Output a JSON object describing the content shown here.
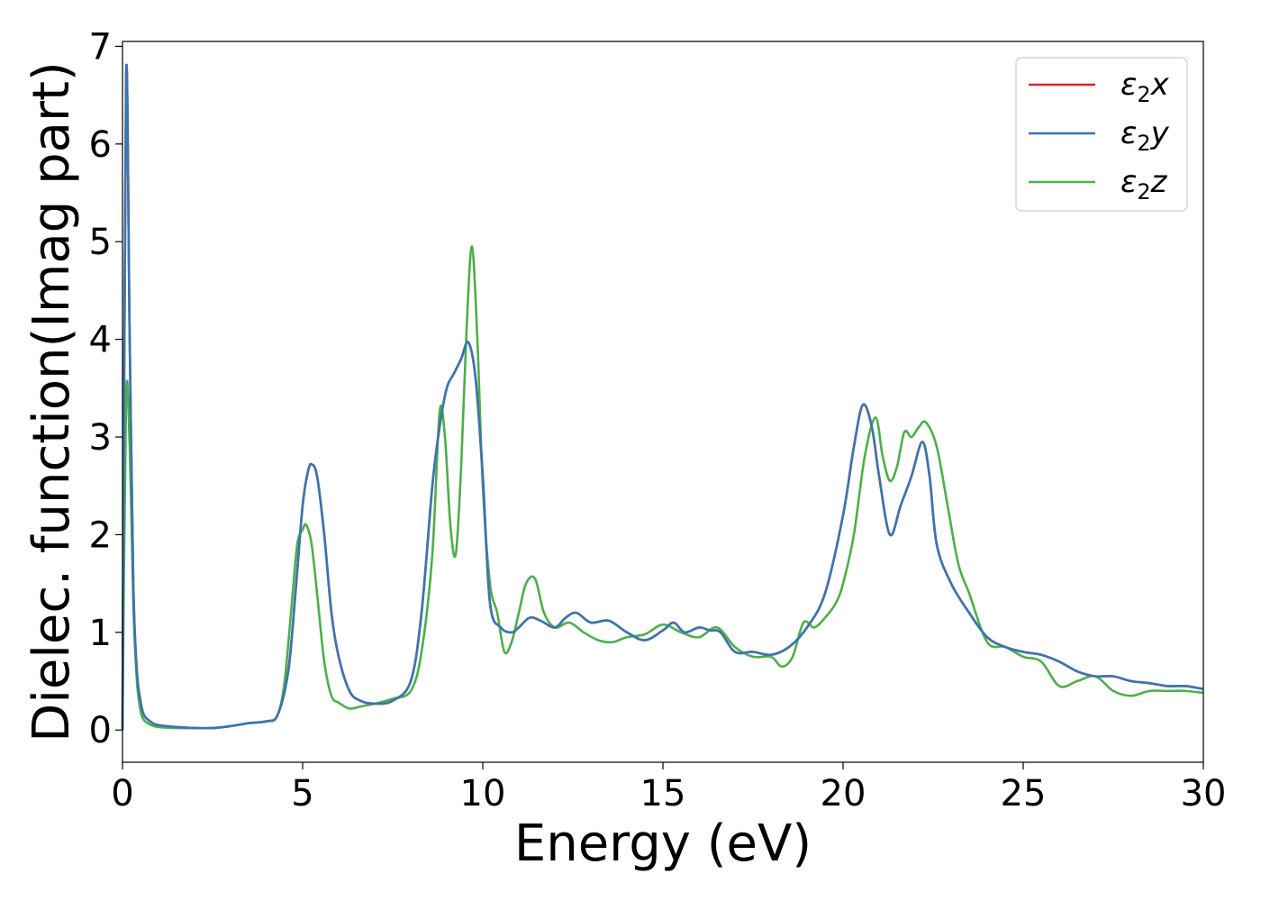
{
  "chart_data": {
    "type": "line",
    "title": "",
    "xlabel": "Energy (eV)",
    "ylabel": "Dielec. function(Imag part)",
    "xlim": [
      0,
      30
    ],
    "ylim": [
      -0.33,
      7.05
    ],
    "xticks": [
      0,
      5,
      10,
      15,
      20,
      25,
      30
    ],
    "yticks": [
      0,
      1,
      2,
      3,
      4,
      5,
      6,
      7
    ],
    "grid": false,
    "legend_position": "top-right",
    "series": [
      {
        "name": "ε₂x",
        "legend": {
          "base": "ε",
          "sub": "2",
          "suffix": "x"
        },
        "color": "#d62728",
        "x": [
          0,
          0.1,
          0.2,
          0.3,
          0.4,
          0.5,
          0.6,
          0.8,
          1.0,
          1.5,
          2.0,
          2.5,
          3.0,
          3.5,
          4.0,
          4.3,
          4.6,
          4.8,
          5.0,
          5.15,
          5.25,
          5.4,
          5.6,
          5.8,
          6.0,
          6.3,
          6.6,
          7.0,
          7.5,
          8.0,
          8.3,
          8.6,
          8.8,
          9.0,
          9.2,
          9.4,
          9.6,
          9.8,
          10.0,
          10.2,
          10.5,
          10.8,
          11.0,
          11.3,
          11.6,
          12.0,
          12.3,
          12.6,
          13.0,
          13.5,
          14.0,
          14.5,
          15.0,
          15.3,
          15.6,
          16.0,
          16.3,
          16.6,
          17.0,
          17.5,
          18.0,
          18.5,
          19.0,
          19.5,
          20.0,
          20.3,
          20.55,
          20.8,
          21.0,
          21.3,
          21.6,
          21.9,
          22.2,
          22.4,
          22.6,
          23.0,
          23.5,
          24.0,
          24.5,
          25.0,
          25.5,
          26.0,
          26.5,
          27.0,
          27.5,
          28.0,
          28.5,
          29.0,
          29.5,
          30.0
        ],
        "y": [
          0.0,
          6.7,
          4.0,
          1.5,
          0.6,
          0.3,
          0.15,
          0.08,
          0.05,
          0.03,
          0.02,
          0.02,
          0.04,
          0.07,
          0.09,
          0.15,
          0.6,
          1.4,
          2.3,
          2.65,
          2.72,
          2.6,
          2.0,
          1.2,
          0.75,
          0.4,
          0.3,
          0.27,
          0.3,
          0.5,
          1.2,
          2.5,
          3.1,
          3.5,
          3.65,
          3.8,
          3.97,
          3.6,
          2.6,
          1.3,
          1.05,
          1.0,
          1.05,
          1.15,
          1.12,
          1.05,
          1.15,
          1.2,
          1.1,
          1.12,
          1.0,
          0.92,
          1.02,
          1.1,
          1.0,
          1.05,
          1.02,
          1.0,
          0.8,
          0.8,
          0.77,
          0.85,
          1.05,
          1.4,
          2.2,
          2.9,
          3.33,
          3.1,
          2.6,
          2.0,
          2.3,
          2.6,
          2.95,
          2.6,
          1.9,
          1.5,
          1.2,
          0.95,
          0.85,
          0.8,
          0.77,
          0.7,
          0.6,
          0.55,
          0.55,
          0.5,
          0.48,
          0.45,
          0.45,
          0.42
        ]
      },
      {
        "name": "ε₂y",
        "legend": {
          "base": "ε",
          "sub": "2",
          "suffix": "y"
        },
        "color": "#3a75b0",
        "x": [
          0,
          0.1,
          0.2,
          0.3,
          0.4,
          0.5,
          0.6,
          0.8,
          1.0,
          1.5,
          2.0,
          2.5,
          3.0,
          3.5,
          4.0,
          4.3,
          4.6,
          4.8,
          5.0,
          5.15,
          5.25,
          5.4,
          5.6,
          5.8,
          6.0,
          6.3,
          6.6,
          7.0,
          7.5,
          8.0,
          8.3,
          8.6,
          8.8,
          9.0,
          9.2,
          9.4,
          9.6,
          9.8,
          10.0,
          10.2,
          10.5,
          10.8,
          11.0,
          11.3,
          11.6,
          12.0,
          12.3,
          12.6,
          13.0,
          13.5,
          14.0,
          14.5,
          15.0,
          15.3,
          15.6,
          16.0,
          16.3,
          16.6,
          17.0,
          17.5,
          18.0,
          18.5,
          19.0,
          19.5,
          20.0,
          20.3,
          20.55,
          20.8,
          21.0,
          21.3,
          21.6,
          21.9,
          22.2,
          22.4,
          22.6,
          23.0,
          23.5,
          24.0,
          24.5,
          25.0,
          25.5,
          26.0,
          26.5,
          27.0,
          27.5,
          28.0,
          28.5,
          29.0,
          29.5,
          30.0
        ],
        "y": [
          0.0,
          6.7,
          4.0,
          1.5,
          0.6,
          0.3,
          0.15,
          0.08,
          0.05,
          0.03,
          0.02,
          0.02,
          0.04,
          0.07,
          0.09,
          0.15,
          0.6,
          1.4,
          2.3,
          2.65,
          2.72,
          2.6,
          2.0,
          1.2,
          0.75,
          0.4,
          0.3,
          0.27,
          0.3,
          0.5,
          1.2,
          2.5,
          3.1,
          3.5,
          3.65,
          3.8,
          3.97,
          3.6,
          2.6,
          1.3,
          1.05,
          1.0,
          1.05,
          1.15,
          1.12,
          1.05,
          1.15,
          1.2,
          1.1,
          1.12,
          1.0,
          0.92,
          1.02,
          1.1,
          1.0,
          1.05,
          1.02,
          1.0,
          0.8,
          0.8,
          0.77,
          0.85,
          1.05,
          1.4,
          2.2,
          2.9,
          3.33,
          3.1,
          2.6,
          2.0,
          2.3,
          2.6,
          2.95,
          2.6,
          1.9,
          1.5,
          1.2,
          0.95,
          0.85,
          0.8,
          0.77,
          0.7,
          0.6,
          0.55,
          0.55,
          0.5,
          0.48,
          0.45,
          0.45,
          0.42
        ]
      },
      {
        "name": "ε₂z",
        "legend": {
          "base": "ε",
          "sub": "2",
          "suffix": "z"
        },
        "color": "#4daf4a",
        "x": [
          0,
          0.1,
          0.2,
          0.3,
          0.4,
          0.5,
          0.6,
          0.8,
          1.0,
          1.5,
          2.0,
          2.5,
          3.0,
          3.5,
          4.0,
          4.3,
          4.5,
          4.7,
          4.85,
          5.0,
          5.1,
          5.25,
          5.4,
          5.6,
          5.8,
          6.0,
          6.3,
          6.6,
          7.0,
          7.5,
          8.0,
          8.3,
          8.6,
          8.8,
          8.95,
          9.1,
          9.25,
          9.4,
          9.55,
          9.7,
          9.85,
          10.0,
          10.2,
          10.4,
          10.6,
          10.8,
          11.0,
          11.2,
          11.45,
          11.7,
          12.0,
          12.4,
          12.8,
          13.2,
          13.6,
          14.0,
          14.5,
          15.0,
          15.5,
          16.0,
          16.5,
          17.0,
          17.5,
          18.0,
          18.3,
          18.6,
          18.9,
          19.2,
          19.5,
          19.8,
          20.0,
          20.3,
          20.6,
          20.9,
          21.1,
          21.3,
          21.5,
          21.7,
          21.9,
          22.1,
          22.3,
          22.6,
          22.9,
          23.2,
          23.5,
          24.0,
          24.5,
          25.0,
          25.5,
          26.0,
          26.5,
          27.0,
          27.5,
          28.0,
          28.5,
          29.0,
          29.5,
          30.0
        ],
        "y": [
          0.0,
          3.4,
          2.9,
          1.3,
          0.5,
          0.2,
          0.1,
          0.05,
          0.03,
          0.02,
          0.02,
          0.02,
          0.04,
          0.07,
          0.09,
          0.15,
          0.5,
          1.3,
          1.9,
          2.05,
          2.1,
          1.9,
          1.4,
          0.7,
          0.35,
          0.28,
          0.22,
          0.24,
          0.27,
          0.32,
          0.4,
          0.8,
          1.8,
          3.25,
          3.0,
          2.1,
          1.8,
          2.7,
          4.1,
          4.95,
          4.0,
          2.5,
          1.5,
          1.2,
          0.8,
          0.9,
          1.2,
          1.5,
          1.55,
          1.2,
          1.05,
          1.1,
          1.0,
          0.92,
          0.9,
          0.95,
          0.98,
          1.08,
          1.0,
          0.95,
          1.05,
          0.85,
          0.75,
          0.75,
          0.65,
          0.75,
          1.1,
          1.05,
          1.15,
          1.3,
          1.5,
          2.0,
          2.8,
          3.2,
          2.8,
          2.55,
          2.7,
          3.05,
          3.0,
          3.1,
          3.15,
          2.9,
          2.3,
          1.7,
          1.4,
          0.9,
          0.85,
          0.75,
          0.7,
          0.45,
          0.5,
          0.55,
          0.4,
          0.35,
          0.4,
          0.4,
          0.4,
          0.38
        ]
      }
    ]
  }
}
